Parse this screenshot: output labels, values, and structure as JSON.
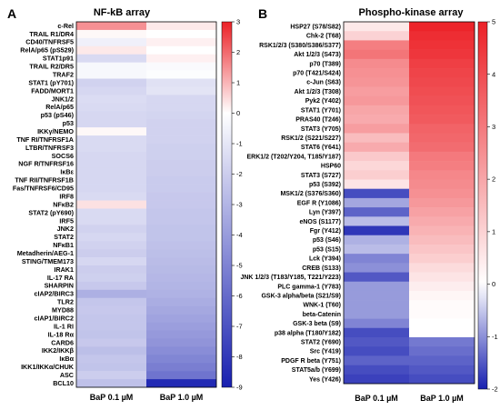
{
  "chart_data": [
    {
      "type": "heatmap",
      "panel_letter": "A",
      "title": "NF-kB array",
      "columns": [
        "BaP 0.1 µM",
        "BaP 1.0 µM"
      ],
      "rows": [
        "c-Rel",
        "TRAIL R1/DR4",
        "CD40/TNFRSF5",
        "RelA/p65 (pS529)",
        "STAT1p91",
        "TRAIL R2/DR5",
        "TRAF2",
        "STAT1 (pY701)",
        "FADD/MORT1",
        "JNK1/2",
        "RelA/p65",
        "p53 (pS46)",
        "p53",
        "IKKγ/NEMO",
        "TNF RI/TNFRSF1A",
        "LTBR/TNFRSF3",
        "SOCS6",
        "NGF R/TNFRSF16",
        "IκBε",
        "TNF RII/TNFRSF1B",
        "Fas/TNFRSF6/CD95",
        "IRF8",
        "NFκB2",
        "STAT2 (pY690)",
        "IRF5",
        "JNK2",
        "STAT2",
        "NFκB1",
        "Metadherin/AEG-1",
        "STING/TMEM173",
        "IRAK1",
        "IL-17 RA",
        "SHARPIN",
        "cIAP2/BIRC3",
        "TLR2",
        "MYD88",
        "cIAP1/BIRC2",
        "IL-1 RI",
        "IL-18 Rα",
        "CARD6",
        "IKK2/IKKβ",
        "IκBα",
        "IKK1/IKKα/CHUK",
        "ASC",
        "BCL10"
      ],
      "values": [
        [
          1.5,
          0.3
        ],
        [
          0.1,
          0.0
        ],
        [
          -0.6,
          0.2
        ],
        [
          0.3,
          0.0
        ],
        [
          -1.5,
          0.2
        ],
        [
          -0.3,
          -0.2
        ],
        [
          -0.3,
          -0.1
        ],
        [
          -1.8,
          -1.2
        ],
        [
          -1.6,
          -1.1
        ],
        [
          -1.4,
          -1.6
        ],
        [
          -1.5,
          -1.6
        ],
        [
          -1.6,
          -1.7
        ],
        [
          -1.6,
          -1.8
        ],
        [
          0.1,
          -1.8
        ],
        [
          -1.5,
          -1.8
        ],
        [
          -1.5,
          -1.9
        ],
        [
          -1.6,
          -1.9
        ],
        [
          -1.6,
          -2.0
        ],
        [
          -1.6,
          -2.0
        ],
        [
          -1.6,
          -2.1
        ],
        [
          -1.6,
          -2.1
        ],
        [
          -1.5,
          -2.2
        ],
        [
          0.4,
          -2.2
        ],
        [
          -1.5,
          -2.3
        ],
        [
          -1.5,
          -2.3
        ],
        [
          -1.8,
          -2.4
        ],
        [
          -1.6,
          -2.4
        ],
        [
          -1.8,
          -2.5
        ],
        [
          -2.0,
          -2.6
        ],
        [
          -1.6,
          -2.7
        ],
        [
          -2.0,
          -2.8
        ],
        [
          -1.9,
          -2.9
        ],
        [
          -2.2,
          -3.0
        ],
        [
          -3.2,
          -3.1
        ],
        [
          -2.3,
          -3.3
        ],
        [
          -2.2,
          -3.5
        ],
        [
          -2.3,
          -3.7
        ],
        [
          -2.3,
          -3.9
        ],
        [
          -2.4,
          -4.1
        ],
        [
          -2.2,
          -4.3
        ],
        [
          -2.6,
          -4.6
        ],
        [
          -2.3,
          -4.9
        ],
        [
          -2.4,
          -5.2
        ],
        [
          -2.0,
          -5.6
        ],
        [
          -2.5,
          -8.6
        ]
      ],
      "colorbar": {
        "min": -9,
        "max": 3,
        "ticks": [
          3,
          2,
          1,
          0,
          -1,
          -2,
          -3,
          -4,
          -5,
          -6,
          -7,
          -8,
          -9
        ]
      }
    },
    {
      "type": "heatmap",
      "panel_letter": "B",
      "title": "Phospho-kinase array",
      "columns": [
        "BaP 0.1 µM",
        "BaP 1.0 µM"
      ],
      "rows": [
        "HSP27 (S78/S82)",
        "Chk-2 (T68)",
        "RSK1/2/3 (S380/S386/S377)",
        "Akt 1/2/3 (S473)",
        "p70 (T389)",
        "p70 (T421/S424)",
        "c-Jun (S63)",
        "Akt 1/2/3 (T308)",
        "Pyk2 (Y402)",
        "STAT1 (Y701)",
        "PRAS40 (T246)",
        "STAT3 (Y705)",
        "RSK1/2 (S221/S227)",
        "STAT6 (Y641)",
        "ERK1/2 (T202/Y204, T185/Y187)",
        "HSP60",
        "STAT3 (S727)",
        "p53 (S392)",
        "MSK1/2 (S376/S360)",
        "EGF R (Y1086)",
        "Lyn (Y397)",
        "eNOS (S1177)",
        "Fgr (Y412)",
        "p53 (S46)",
        "p53 (S15)",
        "Lck (Y394)",
        "CREB (S133)",
        "JNK 1/2/3 (T183/Y185, T221/Y223)",
        "PLC gamma-1 (Y783)",
        "GSK-3 alpha/beta (S21/S9)",
        "WNK-1 (T60)",
        "beta-Catenin",
        "GSK-3 beta (S9)",
        "p38 alpha (T180/Y182)",
        "STAT2 (Y690)",
        "Src (Y419)",
        "PDGF R beta (Y751)",
        "STAT5a/b (Y699)",
        "Yes (Y426)"
      ],
      "values": [
        [
          0.5,
          4.9
        ],
        [
          1.0,
          4.7
        ],
        [
          2.9,
          4.6
        ],
        [
          3.1,
          4.5
        ],
        [
          2.6,
          4.3
        ],
        [
          2.5,
          4.2
        ],
        [
          2.4,
          4.1
        ],
        [
          2.2,
          4.0
        ],
        [
          2.3,
          3.9
        ],
        [
          2.0,
          3.8
        ],
        [
          1.9,
          3.7
        ],
        [
          2.2,
          3.5
        ],
        [
          1.5,
          3.4
        ],
        [
          1.9,
          3.3
        ],
        [
          1.2,
          3.0
        ],
        [
          0.9,
          2.9
        ],
        [
          1.1,
          2.7
        ],
        [
          0.6,
          2.6
        ],
        [
          -1.6,
          2.5
        ],
        [
          -0.8,
          2.3
        ],
        [
          -1.4,
          2.1
        ],
        [
          -0.6,
          1.9
        ],
        [
          -1.8,
          1.7
        ],
        [
          -0.7,
          1.5
        ],
        [
          -0.6,
          1.3
        ],
        [
          -1.1,
          1.1
        ],
        [
          -1.0,
          0.8
        ],
        [
          -1.5,
          0.6
        ],
        [
          -0.9,
          0.4
        ],
        [
          -0.9,
          0.2
        ],
        [
          -0.9,
          0.1
        ],
        [
          -0.9,
          0.1
        ],
        [
          -1.1,
          0.0
        ],
        [
          -1.6,
          0.0
        ],
        [
          -1.5,
          -1.2
        ],
        [
          -1.6,
          -1.3
        ],
        [
          -1.4,
          -1.4
        ],
        [
          -1.6,
          -1.5
        ],
        [
          -1.7,
          -1.6
        ]
      ],
      "colorbar": {
        "min": -2,
        "max": 5,
        "ticks": [
          5,
          4,
          3,
          2,
          1,
          0,
          -1,
          -2
        ]
      }
    }
  ]
}
